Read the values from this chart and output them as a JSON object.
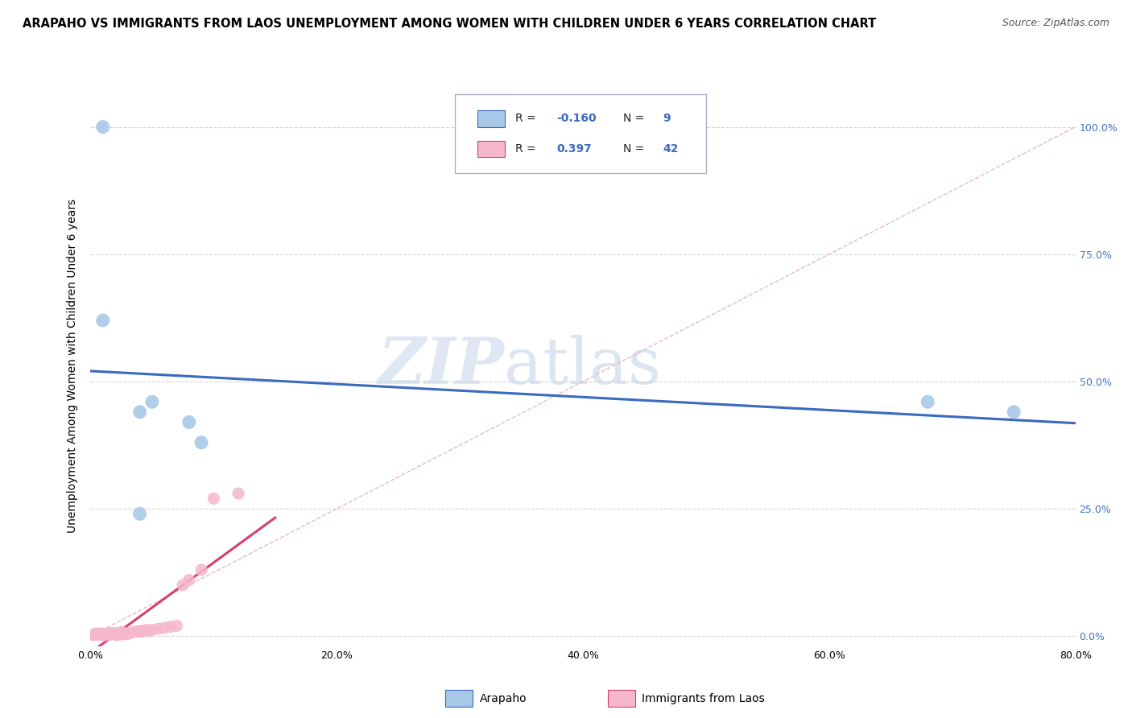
{
  "title": "ARAPAHO VS IMMIGRANTS FROM LAOS UNEMPLOYMENT AMONG WOMEN WITH CHILDREN UNDER 6 YEARS CORRELATION CHART",
  "source": "Source: ZipAtlas.com",
  "ylabel": "Unemployment Among Women with Children Under 6 years",
  "xlim": [
    0.0,
    0.8
  ],
  "ylim": [
    -0.02,
    1.08
  ],
  "plot_ylim": [
    0.0,
    1.0
  ],
  "x_tick_vals": [
    0.0,
    0.1,
    0.2,
    0.3,
    0.4,
    0.5,
    0.6,
    0.7,
    0.8
  ],
  "x_tick_labels": [
    "0.0%",
    "",
    "20.0%",
    "",
    "40.0%",
    "",
    "60.0%",
    "",
    "80.0%"
  ],
  "y_tick_vals": [
    0.0,
    0.25,
    0.5,
    0.75,
    1.0
  ],
  "y_tick_labels": [
    "0.0%",
    "25.0%",
    "50.0%",
    "75.0%",
    "100.0%"
  ],
  "arapaho_R": -0.16,
  "arapaho_N": 9,
  "laos_R": 0.397,
  "laos_N": 42,
  "legend_labels": [
    "Arapaho",
    "Immigrants from Laos"
  ],
  "arapaho_color": "#a8c8e8",
  "laos_color": "#f5b8ca",
  "arapaho_line_color": "#3a6abf",
  "laos_line_color": "#d44070",
  "diagonal_color": "#e8b8c8",
  "grid_color": "#cccccc",
  "background_color": "#ffffff",
  "right_tick_color": "#4472c4",
  "arapaho_points": [
    [
      0.01,
      1.0
    ],
    [
      0.01,
      0.62
    ],
    [
      0.05,
      0.46
    ],
    [
      0.04,
      0.44
    ],
    [
      0.08,
      0.42
    ],
    [
      0.09,
      0.38
    ],
    [
      0.04,
      0.24
    ],
    [
      0.68,
      0.46
    ],
    [
      0.75,
      0.44
    ]
  ],
  "laos_points": [
    [
      0.002,
      0.002
    ],
    [
      0.003,
      0.003
    ],
    [
      0.004,
      0.004
    ],
    [
      0.005,
      0.005
    ],
    [
      0.006,
      0.002
    ],
    [
      0.007,
      0.003
    ],
    [
      0.008,
      0.004
    ],
    [
      0.009,
      0.005
    ],
    [
      0.01,
      0.002
    ],
    [
      0.011,
      0.003
    ],
    [
      0.012,
      0.002
    ],
    [
      0.013,
      0.004
    ],
    [
      0.014,
      0.005
    ],
    [
      0.015,
      0.006
    ],
    [
      0.016,
      0.003
    ],
    [
      0.017,
      0.004
    ],
    [
      0.018,
      0.005
    ],
    [
      0.02,
      0.006
    ],
    [
      0.021,
      0.002
    ],
    [
      0.022,
      0.003
    ],
    [
      0.024,
      0.004
    ],
    [
      0.025,
      0.008
    ],
    [
      0.026,
      0.003
    ],
    [
      0.028,
      0.005
    ],
    [
      0.03,
      0.004
    ],
    [
      0.032,
      0.006
    ],
    [
      0.035,
      0.008
    ],
    [
      0.038,
      0.009
    ],
    [
      0.04,
      0.01
    ],
    [
      0.042,
      0.008
    ],
    [
      0.045,
      0.012
    ],
    [
      0.048,
      0.01
    ],
    [
      0.05,
      0.012
    ],
    [
      0.055,
      0.014
    ],
    [
      0.06,
      0.016
    ],
    [
      0.065,
      0.018
    ],
    [
      0.07,
      0.02
    ],
    [
      0.075,
      0.1
    ],
    [
      0.08,
      0.11
    ],
    [
      0.09,
      0.13
    ],
    [
      0.1,
      0.27
    ],
    [
      0.12,
      0.28
    ]
  ],
  "watermark_zip": "ZIP",
  "watermark_atlas": "atlas",
  "title_fontsize": 10.5,
  "source_fontsize": 9,
  "axis_label_fontsize": 10,
  "tick_fontsize": 9,
  "r_text_color": "#3a6abf"
}
